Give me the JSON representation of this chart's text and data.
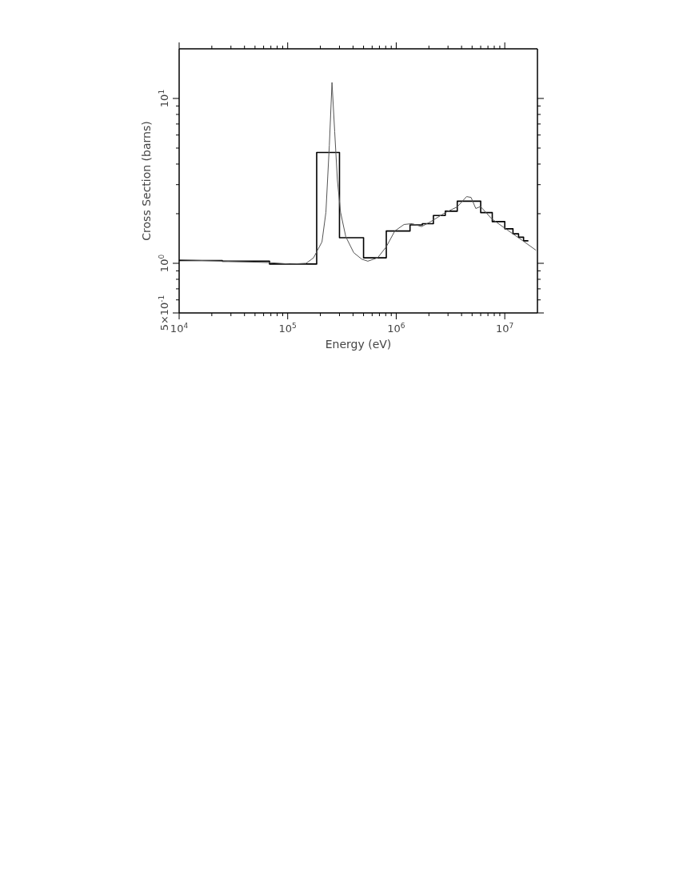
{
  "chart_data": {
    "type": "line",
    "xlabel": "Energy (eV)",
    "ylabel": "Cross Section (barns)",
    "log": "xy",
    "xlim": [
      10000,
      20000000
    ],
    "ylim": [
      0.5,
      20
    ],
    "xticks": [
      {
        "value": 10000,
        "label": "10$^{4}$"
      },
      {
        "value": 20000,
        "label": null
      },
      {
        "value": 30000,
        "label": null
      },
      {
        "value": 40000,
        "label": null
      },
      {
        "value": 50000,
        "label": null
      },
      {
        "value": 60000,
        "label": null
      },
      {
        "value": 70000,
        "label": null
      },
      {
        "value": 80000,
        "label": null
      },
      {
        "value": 90000,
        "label": null
      },
      {
        "value": 100000,
        "label": "10$^{5}$"
      },
      {
        "value": 200000,
        "label": null
      },
      {
        "value": 300000,
        "label": null
      },
      {
        "value": 400000,
        "label": null
      },
      {
        "value": 500000,
        "label": null
      },
      {
        "value": 600000,
        "label": null
      },
      {
        "value": 700000,
        "label": null
      },
      {
        "value": 800000,
        "label": null
      },
      {
        "value": 900000,
        "label": null
      },
      {
        "value": 1000000,
        "label": "10$^{6}$"
      },
      {
        "value": 2000000,
        "label": null
      },
      {
        "value": 3000000,
        "label": null
      },
      {
        "value": 4000000,
        "label": null
      },
      {
        "value": 5000000,
        "label": null
      },
      {
        "value": 6000000,
        "label": null
      },
      {
        "value": 7000000,
        "label": null
      },
      {
        "value": 8000000,
        "label": null
      },
      {
        "value": 9000000,
        "label": null
      },
      {
        "value": 10000000,
        "label": "10$^{7}$"
      }
    ],
    "yticks": [
      {
        "value": 0.5,
        "label": "5×10$^{-1}$"
      },
      {
        "value": 0.6,
        "label": null
      },
      {
        "value": 0.7,
        "label": null
      },
      {
        "value": 0.8,
        "label": null
      },
      {
        "value": 0.9,
        "label": null
      },
      {
        "value": 1,
        "label": "10$^{0}$"
      },
      {
        "value": 2,
        "label": null
      },
      {
        "value": 3,
        "label": null
      },
      {
        "value": 4,
        "label": null
      },
      {
        "value": 5,
        "label": null
      },
      {
        "value": 6,
        "label": null
      },
      {
        "value": 7,
        "label": null
      },
      {
        "value": 8,
        "label": null
      },
      {
        "value": 9,
        "label": null
      },
      {
        "value": 10,
        "label": "10$^{1}$"
      }
    ],
    "series": [
      {
        "type": "step",
        "color": "#000000",
        "x": [
          10000,
          25000,
          68000,
          185000,
          300000,
          500000,
          810000,
          1340000,
          1740000,
          2200000,
          2830000,
          3650000,
          6000000,
          7670000,
          10000000,
          11900000,
          13400000,
          14900000,
          16500000
        ],
        "values": [
          1.04,
          1.03,
          0.99,
          4.7,
          1.43,
          1.08,
          1.57,
          1.71,
          1.74,
          1.95,
          2.07,
          2.38,
          2.03,
          1.79,
          1.62,
          1.51,
          1.44,
          1.37,
          1.37
        ]
      },
      {
        "type": "line",
        "color": "#555555",
        "x": [
          10000,
          68000,
          105000,
          148000,
          173000,
          207000,
          225000,
          242000,
          256000,
          271000,
          287000,
          307000,
          343000,
          406000,
          481000,
          547000,
          674000,
          810000,
          970000,
          1180000,
          1400000,
          1710000,
          2080000,
          2830000,
          3650000,
          4450000,
          4890000,
          5410000,
          5980000,
          7590000,
          10600000,
          14900000,
          19400000
        ],
        "values": [
          1.05,
          1.01,
          0.99,
          1.0,
          1.08,
          1.35,
          2.04,
          5.2,
          12.5,
          6.3,
          3.2,
          2.04,
          1.45,
          1.16,
          1.06,
          1.03,
          1.08,
          1.26,
          1.57,
          1.72,
          1.74,
          1.67,
          1.79,
          2.03,
          2.2,
          2.54,
          2.51,
          2.15,
          2.21,
          1.86,
          1.59,
          1.36,
          1.2
        ]
      }
    ]
  }
}
